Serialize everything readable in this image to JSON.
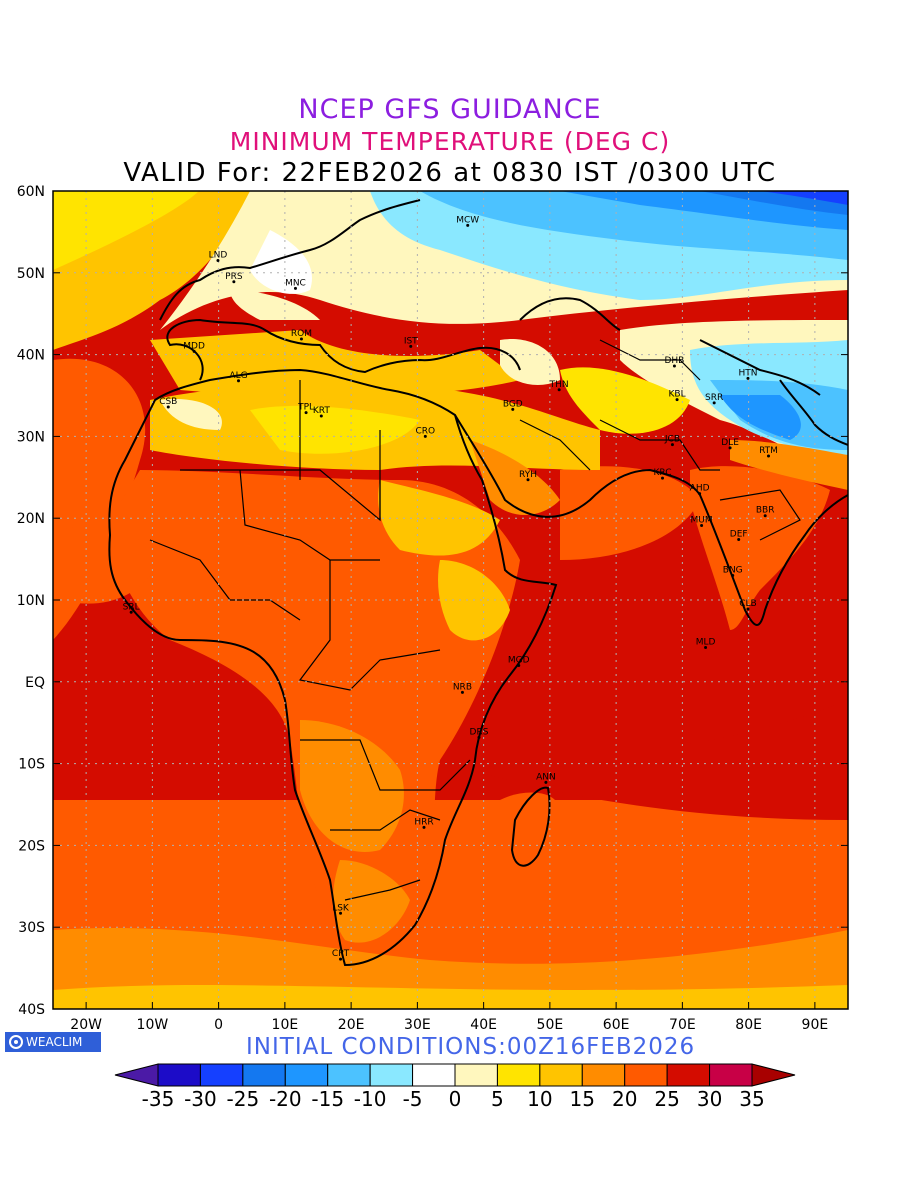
{
  "header": {
    "line1": "NCEP GFS GUIDANCE",
    "line2": "MINIMUM TEMPERATURE (DEG C)",
    "line3": "VALID For: 22FEB2026 at 0830 IST /0300 UTC"
  },
  "footer": {
    "brand": "WEACLIM",
    "init": "INITIAL CONDITIONS:00Z16FEB2026"
  },
  "axes": {
    "lat_labels": [
      "60N",
      "50N",
      "40N",
      "30N",
      "20N",
      "10N",
      "EQ",
      "10S",
      "20S",
      "30S",
      "40S"
    ],
    "lat_values": [
      60,
      50,
      40,
      30,
      20,
      10,
      0,
      -10,
      -20,
      -30,
      -40
    ],
    "lon_labels": [
      "20W",
      "10W",
      "0",
      "10E",
      "20E",
      "30E",
      "40E",
      "50E",
      "60E",
      "70E",
      "80E",
      "90E"
    ],
    "lon_values": [
      -20,
      -10,
      0,
      10,
      20,
      30,
      40,
      50,
      60,
      70,
      80,
      90
    ],
    "lon_range": [
      -25,
      95
    ],
    "lat_range": [
      -40,
      60
    ]
  },
  "cities": [
    {
      "code": "MCW",
      "lon": 37.6,
      "lat": 55.8
    },
    {
      "code": "LND",
      "lon": -0.1,
      "lat": 51.5
    },
    {
      "code": "PRS",
      "lon": 2.3,
      "lat": 48.9
    },
    {
      "code": "MNC",
      "lon": 11.6,
      "lat": 48.1
    },
    {
      "code": "MDD",
      "lon": -3.7,
      "lat": 40.4
    },
    {
      "code": "ROM",
      "lon": 12.5,
      "lat": 41.9
    },
    {
      "code": "IST",
      "lon": 29.0,
      "lat": 41.0
    },
    {
      "code": "ALG",
      "lon": 3.0,
      "lat": 36.8
    },
    {
      "code": "CSB",
      "lon": -7.6,
      "lat": 33.6
    },
    {
      "code": "TPL",
      "lon": 13.2,
      "lat": 32.9
    },
    {
      "code": "KRT",
      "lon": 15.5,
      "lat": 32.5
    },
    {
      "code": "CRO",
      "lon": 31.2,
      "lat": 30.0
    },
    {
      "code": "BGD",
      "lon": 44.4,
      "lat": 33.3
    },
    {
      "code": "THN",
      "lon": 51.4,
      "lat": 35.7
    },
    {
      "code": "DHB",
      "lon": 68.8,
      "lat": 38.6
    },
    {
      "code": "HTN",
      "lon": 79.9,
      "lat": 37.1
    },
    {
      "code": "KBL",
      "lon": 69.2,
      "lat": 34.5
    },
    {
      "code": "SRR",
      "lon": 74.8,
      "lat": 34.1
    },
    {
      "code": "JCB",
      "lon": 68.5,
      "lat": 29.0
    },
    {
      "code": "DLE",
      "lon": 77.2,
      "lat": 28.6
    },
    {
      "code": "RTM",
      "lon": 83.0,
      "lat": 27.6
    },
    {
      "code": "RYH",
      "lon": 46.7,
      "lat": 24.7
    },
    {
      "code": "KRC",
      "lon": 67.0,
      "lat": 24.9
    },
    {
      "code": "AHD",
      "lon": 72.6,
      "lat": 23.0
    },
    {
      "code": "MUM",
      "lon": 72.9,
      "lat": 19.1
    },
    {
      "code": "BBR",
      "lon": 82.5,
      "lat": 20.3
    },
    {
      "code": "DEF",
      "lon": 78.5,
      "lat": 17.4
    },
    {
      "code": "BNG",
      "lon": 77.6,
      "lat": 13.0
    },
    {
      "code": "CLB",
      "lon": 79.9,
      "lat": 8.9
    },
    {
      "code": "MLD",
      "lon": 73.5,
      "lat": 4.2
    },
    {
      "code": "SRL",
      "lon": -13.2,
      "lat": 8.5
    },
    {
      "code": "MGD",
      "lon": 45.3,
      "lat": 2.0
    },
    {
      "code": "NRB",
      "lon": 36.8,
      "lat": -1.3
    },
    {
      "code": "DRS",
      "lon": 39.3,
      "lat": -6.8
    },
    {
      "code": "ANN",
      "lon": 49.4,
      "lat": -12.3
    },
    {
      "code": "HRR",
      "lon": 31.0,
      "lat": -17.8
    },
    {
      "code": "LSK",
      "lon": 18.4,
      "lat": -28.3
    },
    {
      "code": "CPT",
      "lon": 18.4,
      "lat": -33.9
    }
  ],
  "legend": {
    "labels": [
      "-35",
      "-30",
      "-25",
      "-20",
      "-15",
      "-10",
      "-5",
      "0",
      "5",
      "10",
      "15",
      "20",
      "25",
      "30",
      "35"
    ],
    "colors": [
      "#1c0cc8",
      "#1540ff",
      "#1478f0",
      "#1e96ff",
      "#4cc2ff",
      "#8ae8ff",
      "#ffffff",
      "#fff7be",
      "#ffe400",
      "#ffc400",
      "#ff8c00",
      "#ff5a00",
      "#d40c00",
      "#c80046"
    ],
    "left_end_color": "#4b1aa6",
    "right_end_color": "#a80000"
  }
}
